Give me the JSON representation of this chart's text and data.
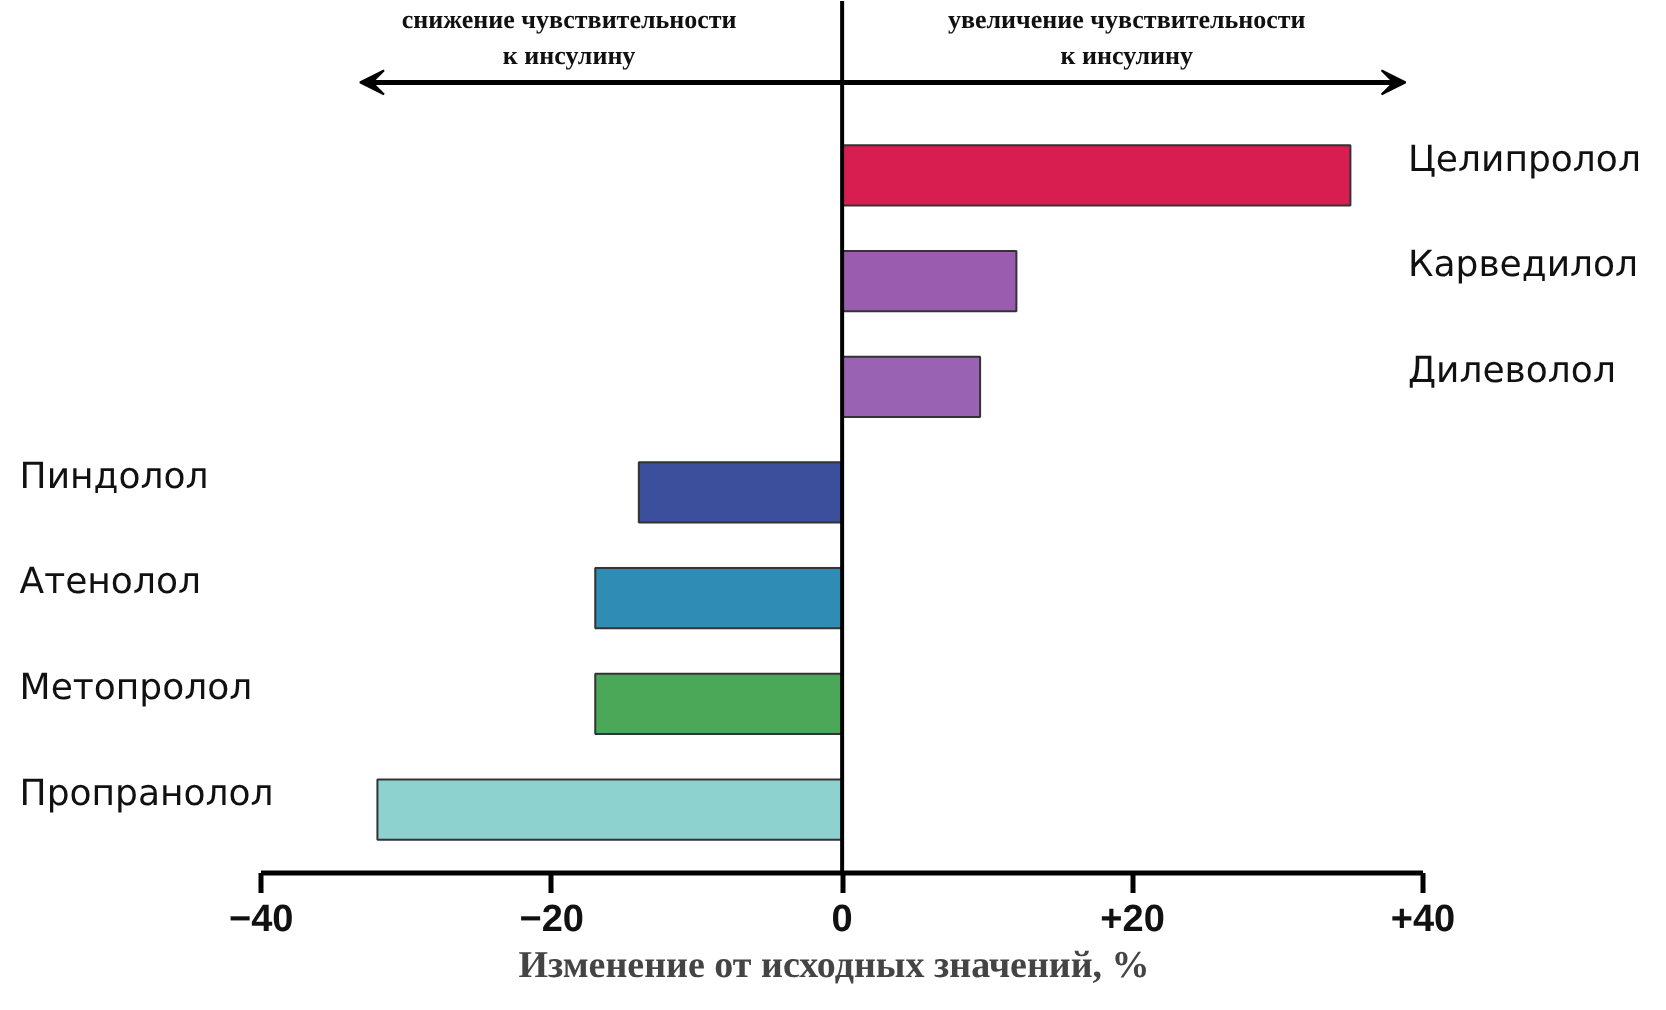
{
  "chart_data": {
    "type": "bar",
    "orientation": "horizontal",
    "xlabel": "Изменение от исходных значений, %",
    "categories": [
      "Целипролол",
      "Карведилол",
      "Дилеволол",
      "Пиндолол",
      "Атенолол",
      "Метопролол",
      "Пропранолол"
    ],
    "values": [
      35,
      12,
      9.5,
      -14,
      -17,
      -17,
      -32
    ],
    "colors": [
      "#d81e50",
      "#9a5cae",
      "#9a62b2",
      "#3b4f9c",
      "#2f8db5",
      "#4aa858",
      "#8ed2cf"
    ],
    "xlim": [
      -40,
      40
    ],
    "xticks": [
      {
        "value": -40,
        "label": "−40"
      },
      {
        "value": -20,
        "label": "−20"
      },
      0,
      {
        "value": 20,
        "label": "+20"
      },
      {
        "value": 40,
        "label": "+40"
      }
    ],
    "ref_lines": [
      {
        "axis": "x",
        "value": 0,
        "color": "#000000"
      }
    ],
    "annotations": [
      "снижение чувствительности\nк инсулину",
      "увеличение чувствительности\nк инсулину"
    ],
    "grid": false
  }
}
